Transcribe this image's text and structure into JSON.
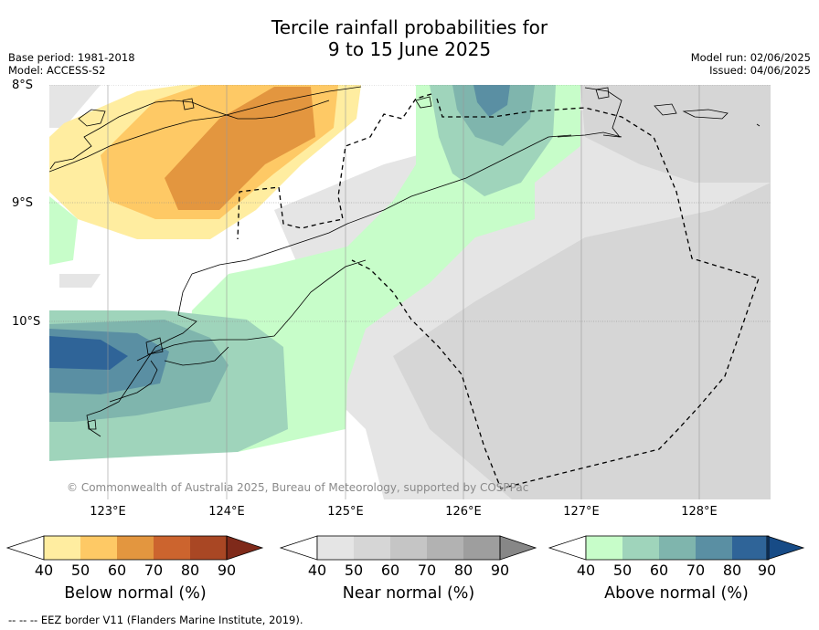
{
  "title_line1": "Tercile rainfall probabilities for",
  "title_line2": "9 to 15 June 2025",
  "meta_left": [
    "Base period: 1981-2018",
    "Model: ACCESS-S2"
  ],
  "meta_right": [
    "Model run: 02/06/2025",
    "Issued: 04/06/2025"
  ],
  "lat_labels": [
    "8°S",
    "9°S",
    "10°S"
  ],
  "lon_labels": [
    "123°E",
    "124°E",
    "125°E",
    "126°E",
    "127°E",
    "128°E"
  ],
  "copyright": "© Commonwealth of Australia 2025, Bureau of Meteorology, supported by COSPPac",
  "colorbars": [
    {
      "title": "Below normal (%)",
      "ticks": [
        "40",
        "50",
        "60",
        "70",
        "80",
        "90"
      ],
      "colors": [
        "#ffeda0",
        "#fec965",
        "#e3963f",
        "#cc642e",
        "#a94724",
        "#7f2a1a"
      ]
    },
    {
      "title": "Near normal (%)",
      "ticks": [
        "40",
        "50",
        "60",
        "70",
        "80",
        "90"
      ],
      "colors": [
        "#e5e5e5",
        "#d6d6d6",
        "#c5c5c5",
        "#b2b2b2",
        "#9e9e9e",
        "#878787"
      ]
    },
    {
      "title": "Above normal (%)",
      "ticks": [
        "40",
        "50",
        "60",
        "70",
        "80",
        "90"
      ],
      "colors": [
        "#c7fdc9",
        "#9fd4bb",
        "#7fb5ad",
        "#5a8fa3",
        "#2f6498",
        "#174b86"
      ]
    }
  ],
  "footnote": "--  --  -- EEZ border V11 (Flanders Marine Institute, 2019)."
}
